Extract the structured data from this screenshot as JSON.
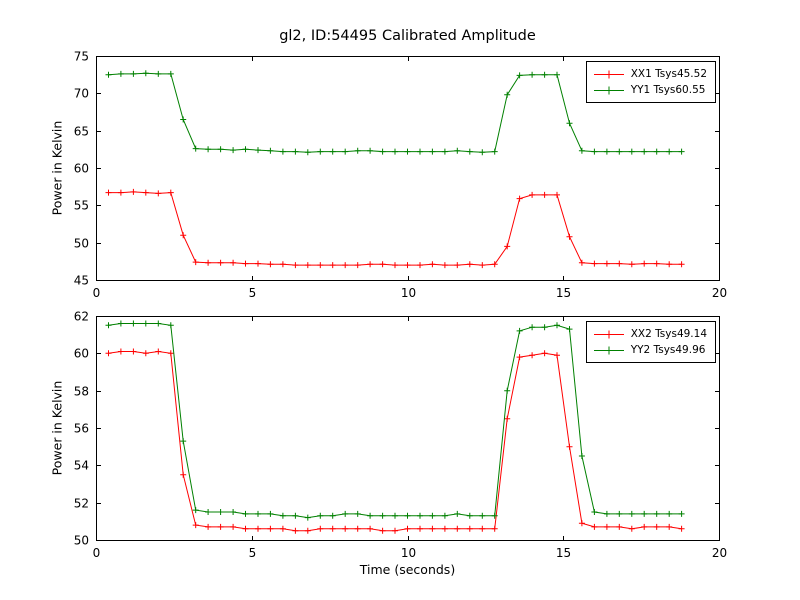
{
  "figure": {
    "title": "gl2, ID:54495 Calibrated Amplitude",
    "background": "#ffffff",
    "axes_color": "#000000"
  },
  "chart_data": [
    {
      "type": "line",
      "name": "top-plot",
      "title": "",
      "xlabel": "",
      "ylabel": "Power in Kelvin",
      "xlim": [
        0,
        20
      ],
      "ylim": [
        45,
        75
      ],
      "xticks": [
        0,
        5,
        10,
        15,
        20
      ],
      "yticks": [
        45,
        50,
        55,
        60,
        65,
        70,
        75
      ],
      "legend_loc": "upper right",
      "grid": false,
      "x": [
        0.4,
        0.8,
        1.2,
        1.6,
        2.0,
        2.4,
        2.8,
        3.2,
        3.6,
        4.0,
        4.4,
        4.8,
        5.2,
        5.6,
        6.0,
        6.4,
        6.8,
        7.2,
        7.6,
        8.0,
        8.4,
        8.8,
        9.2,
        9.6,
        10.0,
        10.4,
        10.8,
        11.2,
        11.6,
        12.0,
        12.4,
        12.8,
        13.2,
        13.6,
        14.0,
        14.4,
        14.8,
        15.2,
        15.6,
        16.0,
        16.4,
        16.8,
        17.2,
        17.6,
        18.0,
        18.4,
        18.8
      ],
      "series": [
        {
          "name": "XX1 Tsys45.52",
          "color": "#ff0000",
          "marker": "+",
          "values": [
            56.7,
            56.7,
            56.8,
            56.7,
            56.6,
            56.7,
            51.0,
            47.4,
            47.3,
            47.3,
            47.3,
            47.2,
            47.2,
            47.1,
            47.1,
            47.0,
            47.0,
            47.0,
            47.0,
            47.0,
            47.0,
            47.1,
            47.1,
            47.0,
            47.0,
            47.0,
            47.1,
            47.0,
            47.0,
            47.1,
            47.0,
            47.1,
            49.5,
            55.9,
            56.4,
            56.4,
            56.4,
            50.8,
            47.3,
            47.2,
            47.2,
            47.2,
            47.1,
            47.2,
            47.2,
            47.1,
            47.1
          ]
        },
        {
          "name": "YY1 Tsys60.55",
          "color": "#008000",
          "marker": "+",
          "values": [
            72.5,
            72.6,
            72.6,
            72.7,
            72.6,
            72.6,
            66.5,
            62.6,
            62.5,
            62.5,
            62.4,
            62.5,
            62.4,
            62.3,
            62.2,
            62.2,
            62.1,
            62.2,
            62.2,
            62.2,
            62.3,
            62.3,
            62.2,
            62.2,
            62.2,
            62.2,
            62.2,
            62.2,
            62.3,
            62.2,
            62.1,
            62.2,
            69.8,
            72.4,
            72.5,
            72.5,
            72.5,
            66.0,
            62.3,
            62.2,
            62.2,
            62.2,
            62.2,
            62.2,
            62.2,
            62.2,
            62.2
          ]
        }
      ]
    },
    {
      "type": "line",
      "name": "bottom-plot",
      "title": "",
      "xlabel": "Time (seconds)",
      "ylabel": "Power in Kelvin",
      "xlim": [
        0,
        20
      ],
      "ylim": [
        50,
        62
      ],
      "xticks": [
        0,
        5,
        10,
        15,
        20
      ],
      "yticks": [
        50,
        52,
        54,
        56,
        58,
        60,
        62
      ],
      "legend_loc": "upper right",
      "grid": false,
      "x": [
        0.4,
        0.8,
        1.2,
        1.6,
        2.0,
        2.4,
        2.8,
        3.2,
        3.6,
        4.0,
        4.4,
        4.8,
        5.2,
        5.6,
        6.0,
        6.4,
        6.8,
        7.2,
        7.6,
        8.0,
        8.4,
        8.8,
        9.2,
        9.6,
        10.0,
        10.4,
        10.8,
        11.2,
        11.6,
        12.0,
        12.4,
        12.8,
        13.2,
        13.6,
        14.0,
        14.4,
        14.8,
        15.2,
        15.6,
        16.0,
        16.4,
        16.8,
        17.2,
        17.6,
        18.0,
        18.4,
        18.8
      ],
      "series": [
        {
          "name": "XX2 Tsys49.14",
          "color": "#ff0000",
          "marker": "+",
          "values": [
            60.0,
            60.1,
            60.1,
            60.0,
            60.1,
            60.0,
            53.5,
            50.8,
            50.7,
            50.7,
            50.7,
            50.6,
            50.6,
            50.6,
            50.6,
            50.5,
            50.5,
            50.6,
            50.6,
            50.6,
            50.6,
            50.6,
            50.5,
            50.5,
            50.6,
            50.6,
            50.6,
            50.6,
            50.6,
            50.6,
            50.6,
            50.6,
            56.5,
            59.8,
            59.9,
            60.0,
            59.9,
            55.0,
            50.9,
            50.7,
            50.7,
            50.7,
            50.6,
            50.7,
            50.7,
            50.7,
            50.6
          ]
        },
        {
          "name": "YY2 Tsys49.96",
          "color": "#008000",
          "marker": "+",
          "values": [
            61.5,
            61.6,
            61.6,
            61.6,
            61.6,
            61.5,
            55.3,
            51.6,
            51.5,
            51.5,
            51.5,
            51.4,
            51.4,
            51.4,
            51.3,
            51.3,
            51.2,
            51.3,
            51.3,
            51.4,
            51.4,
            51.3,
            51.3,
            51.3,
            51.3,
            51.3,
            51.3,
            51.3,
            51.4,
            51.3,
            51.3,
            51.3,
            58.0,
            61.2,
            61.4,
            61.4,
            61.5,
            61.3,
            54.5,
            51.5,
            51.4,
            51.4,
            51.4,
            51.4,
            51.4,
            51.4,
            51.4
          ]
        }
      ]
    }
  ]
}
